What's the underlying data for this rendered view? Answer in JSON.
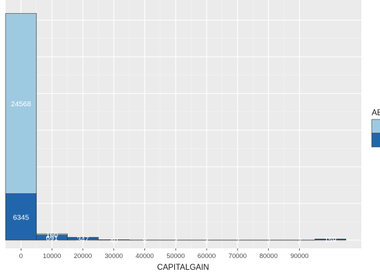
{
  "chart_data": {
    "type": "bar",
    "stacked": true,
    "x": [
      0,
      10000,
      20000,
      30000,
      40000,
      50000,
      60000,
      70000,
      80000,
      90000,
      100000
    ],
    "bin_width": 10000,
    "series": [
      {
        "name": "",
        "color": "#9ecae1",
        "values": [
          24568,
          160,
          30,
          10,
          5,
          2,
          2,
          1,
          1,
          1,
          0
        ]
      },
      {
        "name": "",
        "color": "#2166ac",
        "values": [
          6345,
          691,
          347,
          40,
          8,
          3,
          3,
          2,
          2,
          2,
          159
        ]
      }
    ],
    "data_labels": {
      "series_0": [
        "24568",
        "160",
        "",
        "",
        "",
        "",
        "",
        "",
        "",
        "",
        ""
      ],
      "series_1": [
        "6345",
        "691",
        "347",
        "40",
        "8",
        "3",
        "3",
        "2",
        "2",
        "2",
        "159"
      ]
    },
    "xlabel": "CAPITALGAIN",
    "ylabel": "",
    "title": "",
    "x_ticks": [
      0,
      10000,
      20000,
      30000,
      40000,
      50000,
      60000,
      70000,
      80000,
      90000
    ],
    "x_tick_labels": [
      "0",
      "10000",
      "20000",
      "30000",
      "40000",
      "50000",
      "60000",
      "70000",
      "80000",
      "90000"
    ],
    "xlim": [
      -5000,
      110000
    ],
    "ylim": [
      0,
      32000
    ],
    "y_ticks": [
      0,
      5000,
      10000,
      15000,
      20000,
      25000,
      30000
    ],
    "y_tick_labels": [],
    "grid": true,
    "legend": {
      "title": "AB",
      "position": "right"
    }
  }
}
